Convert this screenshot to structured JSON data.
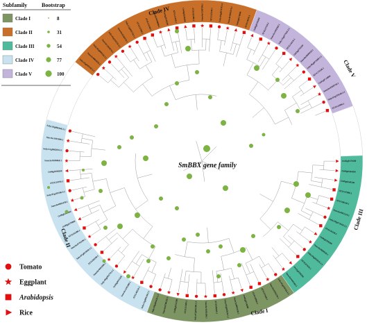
{
  "figure": {
    "center_title": "SmBBX gene family"
  },
  "legend": {
    "subfamily_header": "Subfamily",
    "bootstrap_header": "Bootstrap",
    "clades": [
      {
        "label": "Clade I",
        "color": "#7d9463"
      },
      {
        "label": "Clade II",
        "color": "#c8702a"
      },
      {
        "label": "Clade III",
        "color": "#4fbb9c"
      },
      {
        "label": "Clade IV",
        "color": "#c8e2ef"
      },
      {
        "label": "Clade V",
        "color": "#c3b4dc"
      }
    ],
    "bootstrap_values": [
      "8",
      "31",
      "54",
      "77",
      "100"
    ]
  },
  "species": [
    {
      "label": "Tomato",
      "marker": "circle",
      "italic": false
    },
    {
      "label": "Eggplant",
      "marker": "star",
      "italic": false
    },
    {
      "label": "Arabidopsis",
      "marker": "square",
      "italic": true
    },
    {
      "label": "Rice",
      "marker": "triangle",
      "italic": false
    }
  ],
  "clade_labels": {
    "top": "Clade IV",
    "right_top": "Clade V",
    "right_bottom": "Clade III",
    "bottom": "Clade I",
    "left": "Clade II"
  },
  "colors": {
    "node_green": "#7cb342",
    "marker_red": "#e01010",
    "branch": "#9a9a9a"
  },
  "leaves": {
    "clade_ii_orange": [
      "Solyc02g089540.3.1",
      "Smechr0802050.1",
      "Solyc02g089520.3.1",
      "Smechr1102070.1",
      "Solyc01g110370.3.1",
      "Smechr0100270.1",
      "Solyc12g005750.2.1",
      "AT2G33500.1",
      "AT4G15248.1",
      "Smechr0100880.1",
      "Os04g0540200",
      "AT5G15850.1",
      "Os06g0298200",
      "AT3G02380.1",
      "Smechr1200790.1",
      "AT1G25440.1",
      "Solyc04g007470.3.1",
      "Smechr0401870.1",
      "Os02g0176000",
      "AT4G39070.1"
    ],
    "clade_v_purple": [
      "Os08g0536300",
      "AT4G27310.1",
      "Smechr1002060.1",
      "Solyc10g077020.2.1",
      "AT5G54470.1",
      "Os03g0711100",
      "Smechr0600410.1",
      "Solyc06g073180.3.1",
      "AT1G75540.1",
      "Os02g0724000",
      "Smechr0300750.1",
      "Solyc03g119540.3.1",
      "AT3G21890.1"
    ],
    "clade_iii_teal": [
      "Os02g0178100",
      "Os06g0264200",
      "Os09g0240200",
      "AT2G47890.1",
      "AT1G68520.1",
      "Smechr0901210.1",
      "Solyc09g074560.3.1",
      "AT4G10240.1",
      "Os06g0298200",
      "Smechr0600630.1",
      "Solyc04g081020.3.1",
      "AT3G07650.1",
      "Os12g0209200",
      "Smechr0400560.1"
    ],
    "clade_i_olive": [
      "Solyc05g009310.3.1",
      "Smechr0500230.1",
      "AT5G57660.1",
      "AT4G38960.1",
      "Os02g0724000",
      "Smechr0901650.1",
      "Solyc03g005830.3.1",
      "AT1G06040.1",
      "Smechr0302490.1",
      "Solyc07g062180.3.1",
      "AT2G31380.1",
      "Os06g0152200",
      "Smechr0700220.1",
      "Solyc08g006420.3.1"
    ],
    "clade_iv_lightblue": [
      "Solyc12g089240.2.1",
      "AT5G48250.1",
      "Smechr1201900.1",
      "Os04g0611200",
      "Solyc06g083770.3.1",
      "Smechr0603080.1",
      "AT1G68190.1",
      "Solyc07g052820.3.1",
      "Smechr0702290.1",
      "AT3G02380.1",
      "Os08g0178800",
      "Os09g0240200",
      "Smechr0601450.1",
      "Solyc01g110180.3.1",
      "AT2G24790.1",
      "Os06g0298200",
      "Smechr0100060.1",
      "Solyc12g096500.2.1",
      "Smechr1001090.1",
      "Solyc10g006360.3.1"
    ]
  }
}
